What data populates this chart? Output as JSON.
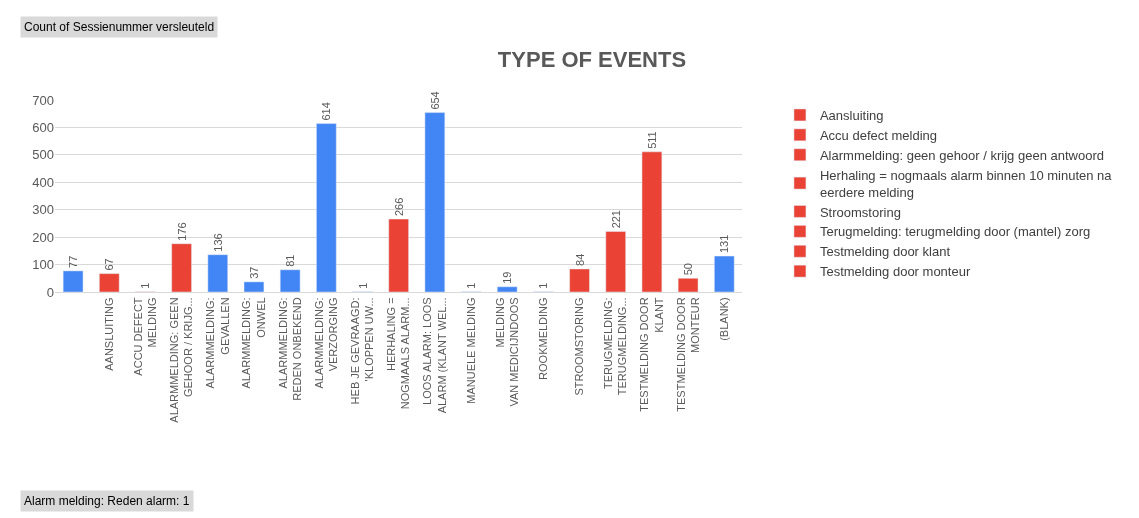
{
  "chart_data": {
    "type": "bar",
    "title": "TYPE OF EVENTS",
    "categories": [
      null,
      "AANSLUITING",
      "ACCU DEFECT\nMELDING",
      "ALARMMELDING: GEEN\nGEHOOR / KRIJG...",
      "ALARMMELDING:\nGEVALLEN",
      "ALARMMELDING:\nONWEL",
      "ALARMMELDING:\nREDEN ONBEKEND",
      "ALARMMELDING:\nVERZORGING",
      "HEB JE GEVRAAGD:\n'KLOPPEN UW...",
      "HERHALING =\nNOGMAALS ALARM...",
      "LOOS ALARM: LOOS\nALARM (KLANT WEL...",
      "MANUELE MELDING",
      "MELDING\nVAN MEDICIJNDOOS",
      "ROOKMELDING",
      "STROOMSTORING",
      "TERUGMELDING:\nTERUGMELDING...",
      "TESTMELDING DOOR\nKLANT",
      "TESTMELDING DOOR\nMONTEUR",
      "(BLANK)"
    ],
    "series": [
      {
        "color": "#4285f4",
        "values": [
          77,
          null,
          null,
          null,
          136,
          37,
          81,
          614,
          1,
          null,
          654,
          1,
          19,
          1,
          null,
          null,
          null,
          null,
          131
        ]
      },
      {
        "name": "Aansluiting",
        "color": "#ea4335",
        "values": [
          null,
          67,
          null,
          null,
          null,
          null,
          null,
          null,
          null,
          null,
          null,
          null,
          null,
          null,
          null,
          null,
          null,
          null,
          null
        ]
      },
      {
        "name": "Accu defect melding",
        "color": "#ea4335",
        "values": [
          null,
          null,
          1,
          null,
          null,
          null,
          null,
          null,
          null,
          null,
          null,
          null,
          null,
          null,
          null,
          null,
          null,
          null,
          null
        ]
      },
      {
        "name": "Alarmmelding: geen gehoor / krijg geen antwoord",
        "color": "#ea4335",
        "values": [
          null,
          null,
          null,
          176,
          null,
          null,
          null,
          null,
          null,
          null,
          null,
          null,
          null,
          null,
          null,
          null,
          null,
          null,
          null
        ]
      },
      {
        "name": "Herhaling = nogmaals alarm binnen 10 minuten na\neerdere melding",
        "color": "#ea4335",
        "values": [
          null,
          null,
          null,
          null,
          null,
          null,
          null,
          null,
          null,
          266,
          null,
          null,
          null,
          null,
          null,
          null,
          null,
          null,
          null
        ]
      },
      {
        "name": "Stroomstoring",
        "color": "#ea4335",
        "values": [
          null,
          null,
          null,
          null,
          null,
          null,
          null,
          null,
          null,
          null,
          null,
          null,
          null,
          null,
          84,
          null,
          null,
          null,
          null
        ]
      },
      {
        "name": "Terugmelding: terugmelding door (mantel) zorg",
        "color": "#ea4335",
        "values": [
          null,
          null,
          null,
          null,
          null,
          null,
          null,
          null,
          null,
          null,
          null,
          null,
          null,
          null,
          null,
          221,
          null,
          null,
          null
        ]
      },
      {
        "name": "Testmelding door klant",
        "color": "#ea4335",
        "values": [
          null,
          null,
          null,
          null,
          null,
          null,
          null,
          null,
          null,
          null,
          null,
          null,
          null,
          null,
          null,
          null,
          511,
          null,
          null
        ]
      },
      {
        "name": "Testmelding door monteur",
        "color": "#ea4335",
        "values": [
          null,
          null,
          null,
          null,
          null,
          null,
          null,
          null,
          null,
          null,
          null,
          null,
          null,
          null,
          null,
          null,
          null,
          50,
          null
        ]
      }
    ],
    "ylim": [
      0,
      700
    ],
    "yticks": [
      0,
      100,
      200,
      300,
      400,
      500,
      600,
      700
    ],
    "grid": "y",
    "legend": "right",
    "data_labels": true,
    "annotations": [
      "Count of Sessienummer versleuteld",
      "Alarm melding: Reden alarm: 1"
    ]
  }
}
